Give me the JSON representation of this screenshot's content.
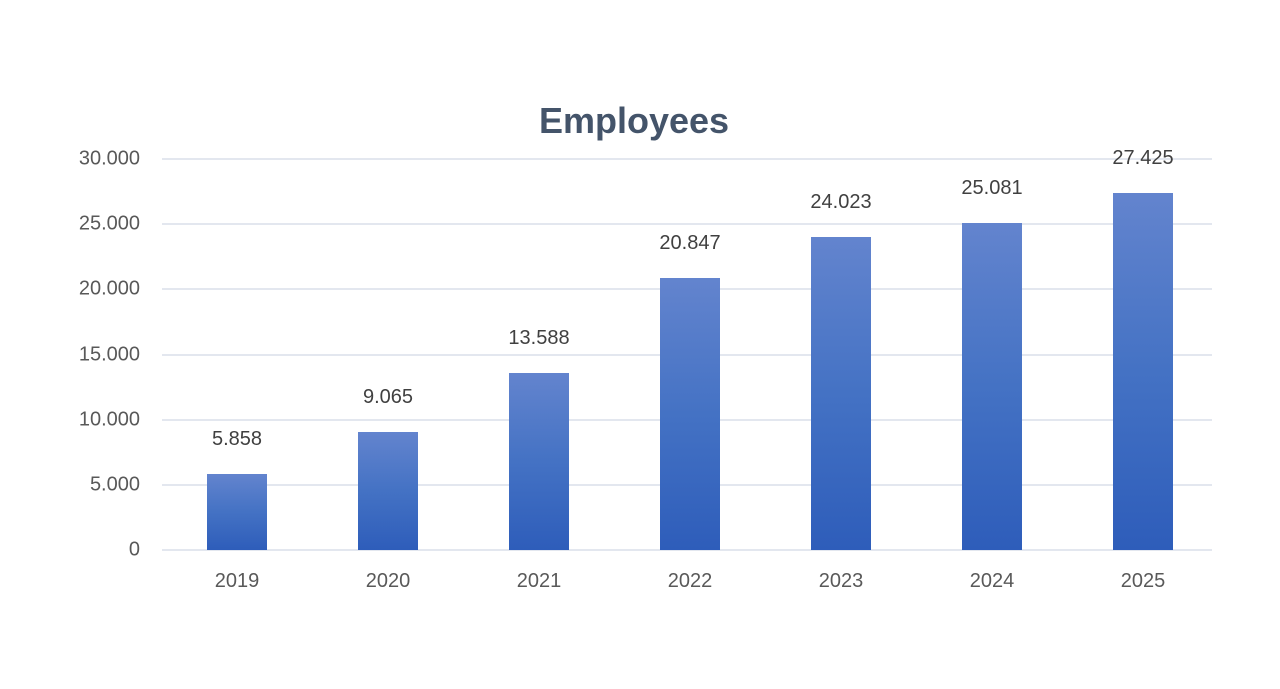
{
  "chart_data": {
    "type": "bar",
    "title": "Employees",
    "xlabel": "",
    "ylabel": "",
    "categories": [
      "2019",
      "2020",
      "2021",
      "2022",
      "2023",
      "2024",
      "2025"
    ],
    "values": [
      5858,
      9065,
      13588,
      20847,
      24023,
      25081,
      27425
    ],
    "value_labels": [
      "5.858",
      "9.065",
      "13.588",
      "20.847",
      "24.023",
      "25.081",
      "27.425"
    ],
    "ylim": [
      0,
      30000
    ],
    "yticks": [
      0,
      5000,
      10000,
      15000,
      20000,
      25000,
      30000
    ],
    "ytick_labels": [
      "0",
      "5.000",
      "10.000",
      "15.000",
      "20.000",
      "25.000",
      "30.000"
    ],
    "grid": true,
    "legend": null,
    "bar_color": "#4472C4"
  }
}
